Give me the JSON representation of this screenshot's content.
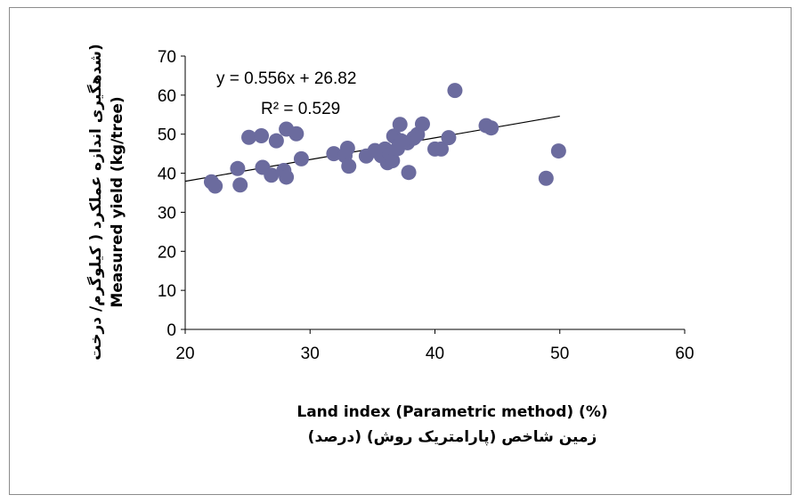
{
  "chart_data": {
    "type": "scatter",
    "xlabel": "Land index (Parametric method) (%)",
    "xlabel_fa": "زمین شاخص (پارامتریک روش) (درصد)",
    "ylabel": "Measured yield (kg/tree)",
    "ylabel_fa": "(شدهگیری اندازه عملکرد ( کیلوگرم/ درخت",
    "xlim": [
      20,
      60
    ],
    "ylim": [
      0,
      70
    ],
    "xticks": [
      20,
      30,
      40,
      50,
      60
    ],
    "yticks": [
      0,
      10,
      20,
      30,
      40,
      50,
      60,
      70
    ],
    "grid": false,
    "marker_color": "#6B6B9E",
    "trendline": {
      "slope": 0.556,
      "intercept": 26.82,
      "x_range": [
        20,
        50
      ],
      "equation": "y = 0.556x + 26.82",
      "r2": "R² = 0.529"
    },
    "points": [
      {
        "x": 22.1,
        "y": 37.8
      },
      {
        "x": 22.4,
        "y": 36.7
      },
      {
        "x": 24.2,
        "y": 41.2
      },
      {
        "x": 24.4,
        "y": 37.0
      },
      {
        "x": 25.1,
        "y": 49.2
      },
      {
        "x": 26.1,
        "y": 49.6
      },
      {
        "x": 26.2,
        "y": 41.5
      },
      {
        "x": 26.9,
        "y": 39.5
      },
      {
        "x": 27.3,
        "y": 48.3
      },
      {
        "x": 27.9,
        "y": 40.7
      },
      {
        "x": 28.1,
        "y": 51.3
      },
      {
        "x": 28.1,
        "y": 39.0
      },
      {
        "x": 28.9,
        "y": 50.1
      },
      {
        "x": 29.3,
        "y": 43.7
      },
      {
        "x": 31.9,
        "y": 45.0
      },
      {
        "x": 32.8,
        "y": 44.5
      },
      {
        "x": 33.0,
        "y": 46.4
      },
      {
        "x": 33.1,
        "y": 41.8
      },
      {
        "x": 34.5,
        "y": 44.4
      },
      {
        "x": 35.2,
        "y": 45.8
      },
      {
        "x": 35.7,
        "y": 44.5
      },
      {
        "x": 36.0,
        "y": 46.2
      },
      {
        "x": 36.2,
        "y": 42.7
      },
      {
        "x": 36.4,
        "y": 44.8
      },
      {
        "x": 36.7,
        "y": 49.5
      },
      {
        "x": 36.6,
        "y": 43.2
      },
      {
        "x": 37.0,
        "y": 46.3
      },
      {
        "x": 37.2,
        "y": 52.5
      },
      {
        "x": 37.3,
        "y": 48.3
      },
      {
        "x": 37.8,
        "y": 47.8
      },
      {
        "x": 37.9,
        "y": 40.2
      },
      {
        "x": 38.3,
        "y": 49.0
      },
      {
        "x": 38.6,
        "y": 49.9
      },
      {
        "x": 39.0,
        "y": 52.6
      },
      {
        "x": 40.0,
        "y": 46.2
      },
      {
        "x": 40.5,
        "y": 46.2
      },
      {
        "x": 41.1,
        "y": 49.1
      },
      {
        "x": 41.6,
        "y": 61.2
      },
      {
        "x": 44.1,
        "y": 52.2
      },
      {
        "x": 44.5,
        "y": 51.6
      },
      {
        "x": 48.9,
        "y": 38.7
      },
      {
        "x": 49.9,
        "y": 45.7
      }
    ]
  }
}
